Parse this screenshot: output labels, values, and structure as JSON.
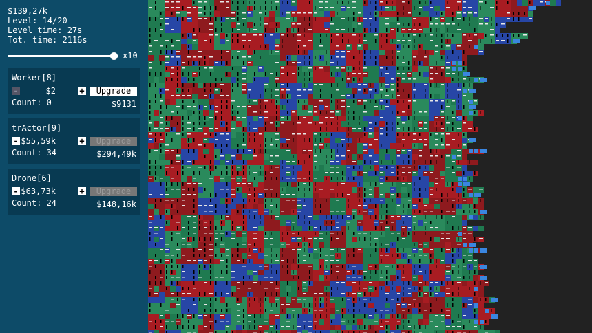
{
  "stats": {
    "money": "$139,27k",
    "level": "Level: 14/20",
    "level_time": "Level time: 27s",
    "total_time": "Tot. time: 2116s"
  },
  "speed_label": "x10",
  "units": [
    {
      "name": "Worker[8]",
      "minus": "-",
      "minus_enabled": false,
      "cost": "$2",
      "plus": "+",
      "upgrade": "Upgrade",
      "upgrade_enabled": true,
      "count": "Count: 0",
      "upgrade_cost": "$9131"
    },
    {
      "name": "trActor[9]",
      "minus": "-",
      "minus_enabled": true,
      "cost": "$55,59k",
      "plus": "+",
      "upgrade": "Upgrade",
      "upgrade_enabled": false,
      "count": "Count: 34",
      "upgrade_cost": "$294,49k"
    },
    {
      "name": "Drone[6]",
      "minus": "-",
      "minus_enabled": true,
      "cost": "$63,73k",
      "plus": "+",
      "upgrade": "Upgrade",
      "upgrade_enabled": false,
      "count": "Count: 24",
      "upgrade_cost": "$148,16k"
    }
  ]
}
